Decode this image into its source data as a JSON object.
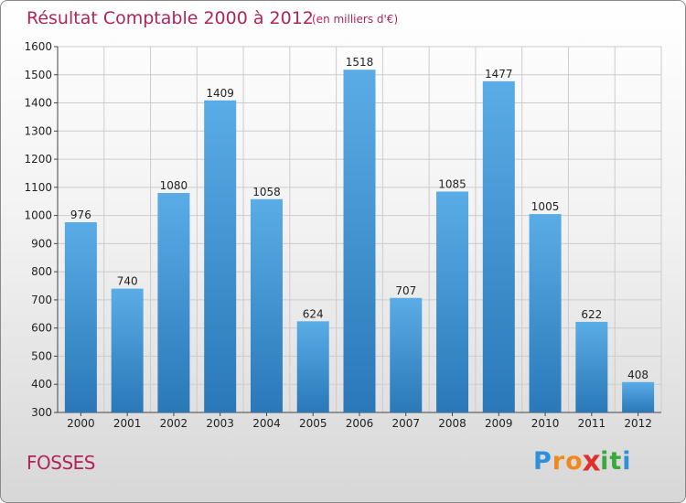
{
  "chart_data": {
    "type": "bar",
    "title": "Résultat Comptable 2000 à 2012",
    "subtitle": "(en milliers d'€)",
    "categories": [
      "2000",
      "2001",
      "2002",
      "2003",
      "2004",
      "2005",
      "2006",
      "2007",
      "2008",
      "2009",
      "2010",
      "2011",
      "2012"
    ],
    "values": [
      976,
      740,
      1080,
      1409,
      1058,
      624,
      1518,
      707,
      1085,
      1477,
      1005,
      622,
      408
    ],
    "ylim": [
      300,
      1600
    ],
    "yticks": [
      300,
      400,
      500,
      600,
      700,
      800,
      900,
      1000,
      1100,
      1200,
      1300,
      1400,
      1500,
      1600
    ],
    "xlabel": "",
    "ylabel": "",
    "grid": true,
    "bar_color_top": "#5aace6",
    "bar_color_bottom": "#2a78b8"
  },
  "location": "FOSSES",
  "brand": {
    "letters": [
      "P",
      "r",
      "o",
      "x",
      "i",
      "t",
      "i"
    ],
    "colors": [
      "#2f8fd8",
      "#f08a1c",
      "#f08a1c",
      "#e0302a",
      "#3aa83a",
      "#3aa83a",
      "#2f8fd8"
    ]
  },
  "colors": {
    "title": "#b0245a",
    "grid": "#cccccc"
  }
}
